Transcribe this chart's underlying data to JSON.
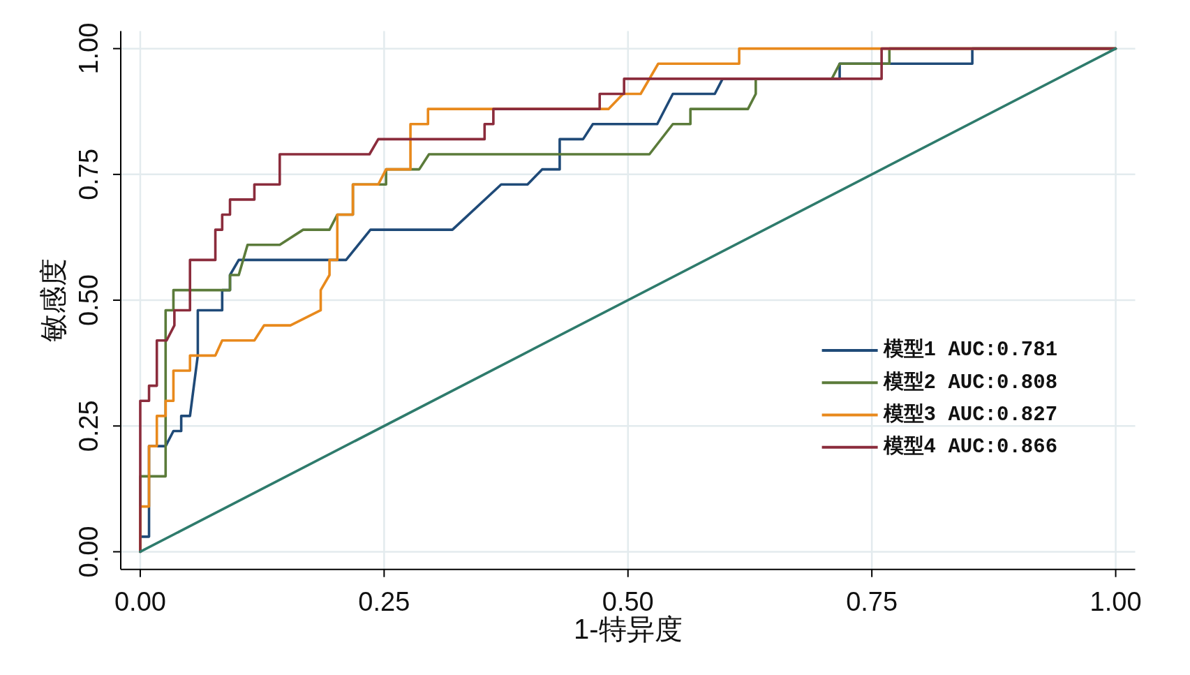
{
  "chart_data": {
    "type": "line",
    "xlabel": "1-特异度",
    "ylabel": "敏感度",
    "xlim": [
      -0.02,
      1.02
    ],
    "ylim": [
      -0.035,
      1.035
    ],
    "xticks": [
      {
        "value": 0,
        "label": "0.00"
      },
      {
        "value": 0.25,
        "label": "0.25"
      },
      {
        "value": 0.5,
        "label": "0.50"
      },
      {
        "value": 0.75,
        "label": "0.75"
      },
      {
        "value": 1,
        "label": "1.00"
      }
    ],
    "yticks": [
      {
        "value": 0,
        "label": "0.00"
      },
      {
        "value": 0.25,
        "label": "0.25"
      },
      {
        "value": 0.5,
        "label": "0.50"
      },
      {
        "value": 0.75,
        "label": "0.75"
      },
      {
        "value": 1,
        "label": "1.00"
      }
    ],
    "grid": true,
    "legend": "bottom right",
    "series": [
      {
        "name": "模型1 AUC:0.781",
        "color": "#1f4a78",
        "x": [
          0,
          0,
          0.009,
          0.009,
          0.026,
          0.034,
          0.042,
          0.042,
          0.051,
          0.059,
          0.059,
          0.084,
          0.084,
          0.092,
          0.092,
          0.101,
          0.211,
          0.236,
          0.32,
          0.37,
          0.397,
          0.412,
          0.43,
          0.43,
          0.454,
          0.464,
          0.53,
          0.546,
          0.589,
          0.597,
          0.717,
          0.717,
          0.853,
          0.853,
          1
        ],
        "values": [
          0,
          0.03,
          0.03,
          0.21,
          0.21,
          0.24,
          0.24,
          0.27,
          0.27,
          0.39,
          0.48,
          0.48,
          0.52,
          0.52,
          0.55,
          0.58,
          0.58,
          0.64,
          0.64,
          0.73,
          0.73,
          0.76,
          0.76,
          0.82,
          0.82,
          0.85,
          0.85,
          0.91,
          0.91,
          0.94,
          0.94,
          0.97,
          0.97,
          1,
          1
        ]
      },
      {
        "name": "模型2 AUC:0.808",
        "color": "#5b7b3a",
        "x": [
          0,
          0,
          0.026,
          0.026,
          0.034,
          0.034,
          0.092,
          0.092,
          0.101,
          0.11,
          0.143,
          0.167,
          0.194,
          0.202,
          0.218,
          0.218,
          0.252,
          0.252,
          0.286,
          0.296,
          0.522,
          0.546,
          0.564,
          0.564,
          0.623,
          0.631,
          0.631,
          0.709,
          0.717,
          0.768,
          0.768,
          1
        ],
        "values": [
          0,
          0.15,
          0.15,
          0.48,
          0.48,
          0.52,
          0.52,
          0.55,
          0.55,
          0.61,
          0.61,
          0.64,
          0.64,
          0.67,
          0.67,
          0.73,
          0.73,
          0.76,
          0.76,
          0.79,
          0.79,
          0.85,
          0.85,
          0.88,
          0.88,
          0.91,
          0.94,
          0.94,
          0.97,
          0.97,
          1,
          1
        ]
      },
      {
        "name": "模型3 AUC:0.827",
        "color": "#e8891c",
        "x": [
          0,
          0,
          0.009,
          0.009,
          0.017,
          0.017,
          0.026,
          0.026,
          0.034,
          0.034,
          0.051,
          0.051,
          0.077,
          0.084,
          0.117,
          0.127,
          0.154,
          0.185,
          0.185,
          0.194,
          0.194,
          0.202,
          0.202,
          0.218,
          0.218,
          0.244,
          0.252,
          0.277,
          0.277,
          0.295,
          0.295,
          0.48,
          0.495,
          0.513,
          0.531,
          0.614,
          0.614,
          1
        ],
        "values": [
          0,
          0.09,
          0.09,
          0.21,
          0.21,
          0.27,
          0.27,
          0.3,
          0.3,
          0.36,
          0.36,
          0.39,
          0.39,
          0.42,
          0.42,
          0.45,
          0.45,
          0.48,
          0.52,
          0.55,
          0.58,
          0.58,
          0.67,
          0.67,
          0.73,
          0.73,
          0.76,
          0.76,
          0.85,
          0.85,
          0.88,
          0.88,
          0.91,
          0.91,
          0.97,
          0.97,
          1,
          1
        ]
      },
      {
        "name": "模型4 AUC:0.866",
        "color": "#8b2c3c",
        "x": [
          0,
          0,
          0.009,
          0.009,
          0.017,
          0.017,
          0.027,
          0.035,
          0.035,
          0.051,
          0.051,
          0.077,
          0.077,
          0.084,
          0.084,
          0.092,
          0.092,
          0.117,
          0.117,
          0.143,
          0.143,
          0.235,
          0.244,
          0.353,
          0.353,
          0.362,
          0.362,
          0.471,
          0.471,
          0.496,
          0.496,
          0.76,
          0.76,
          1
        ],
        "values": [
          0,
          0.3,
          0.3,
          0.33,
          0.33,
          0.42,
          0.42,
          0.45,
          0.48,
          0.48,
          0.58,
          0.58,
          0.64,
          0.64,
          0.67,
          0.67,
          0.7,
          0.7,
          0.73,
          0.73,
          0.79,
          0.79,
          0.82,
          0.82,
          0.85,
          0.85,
          0.88,
          0.88,
          0.91,
          0.91,
          0.94,
          0.94,
          1,
          1
        ]
      },
      {
        "color": "#2e7b6c",
        "x": [
          0,
          1
        ],
        "values": [
          0,
          1
        ]
      }
    ]
  }
}
